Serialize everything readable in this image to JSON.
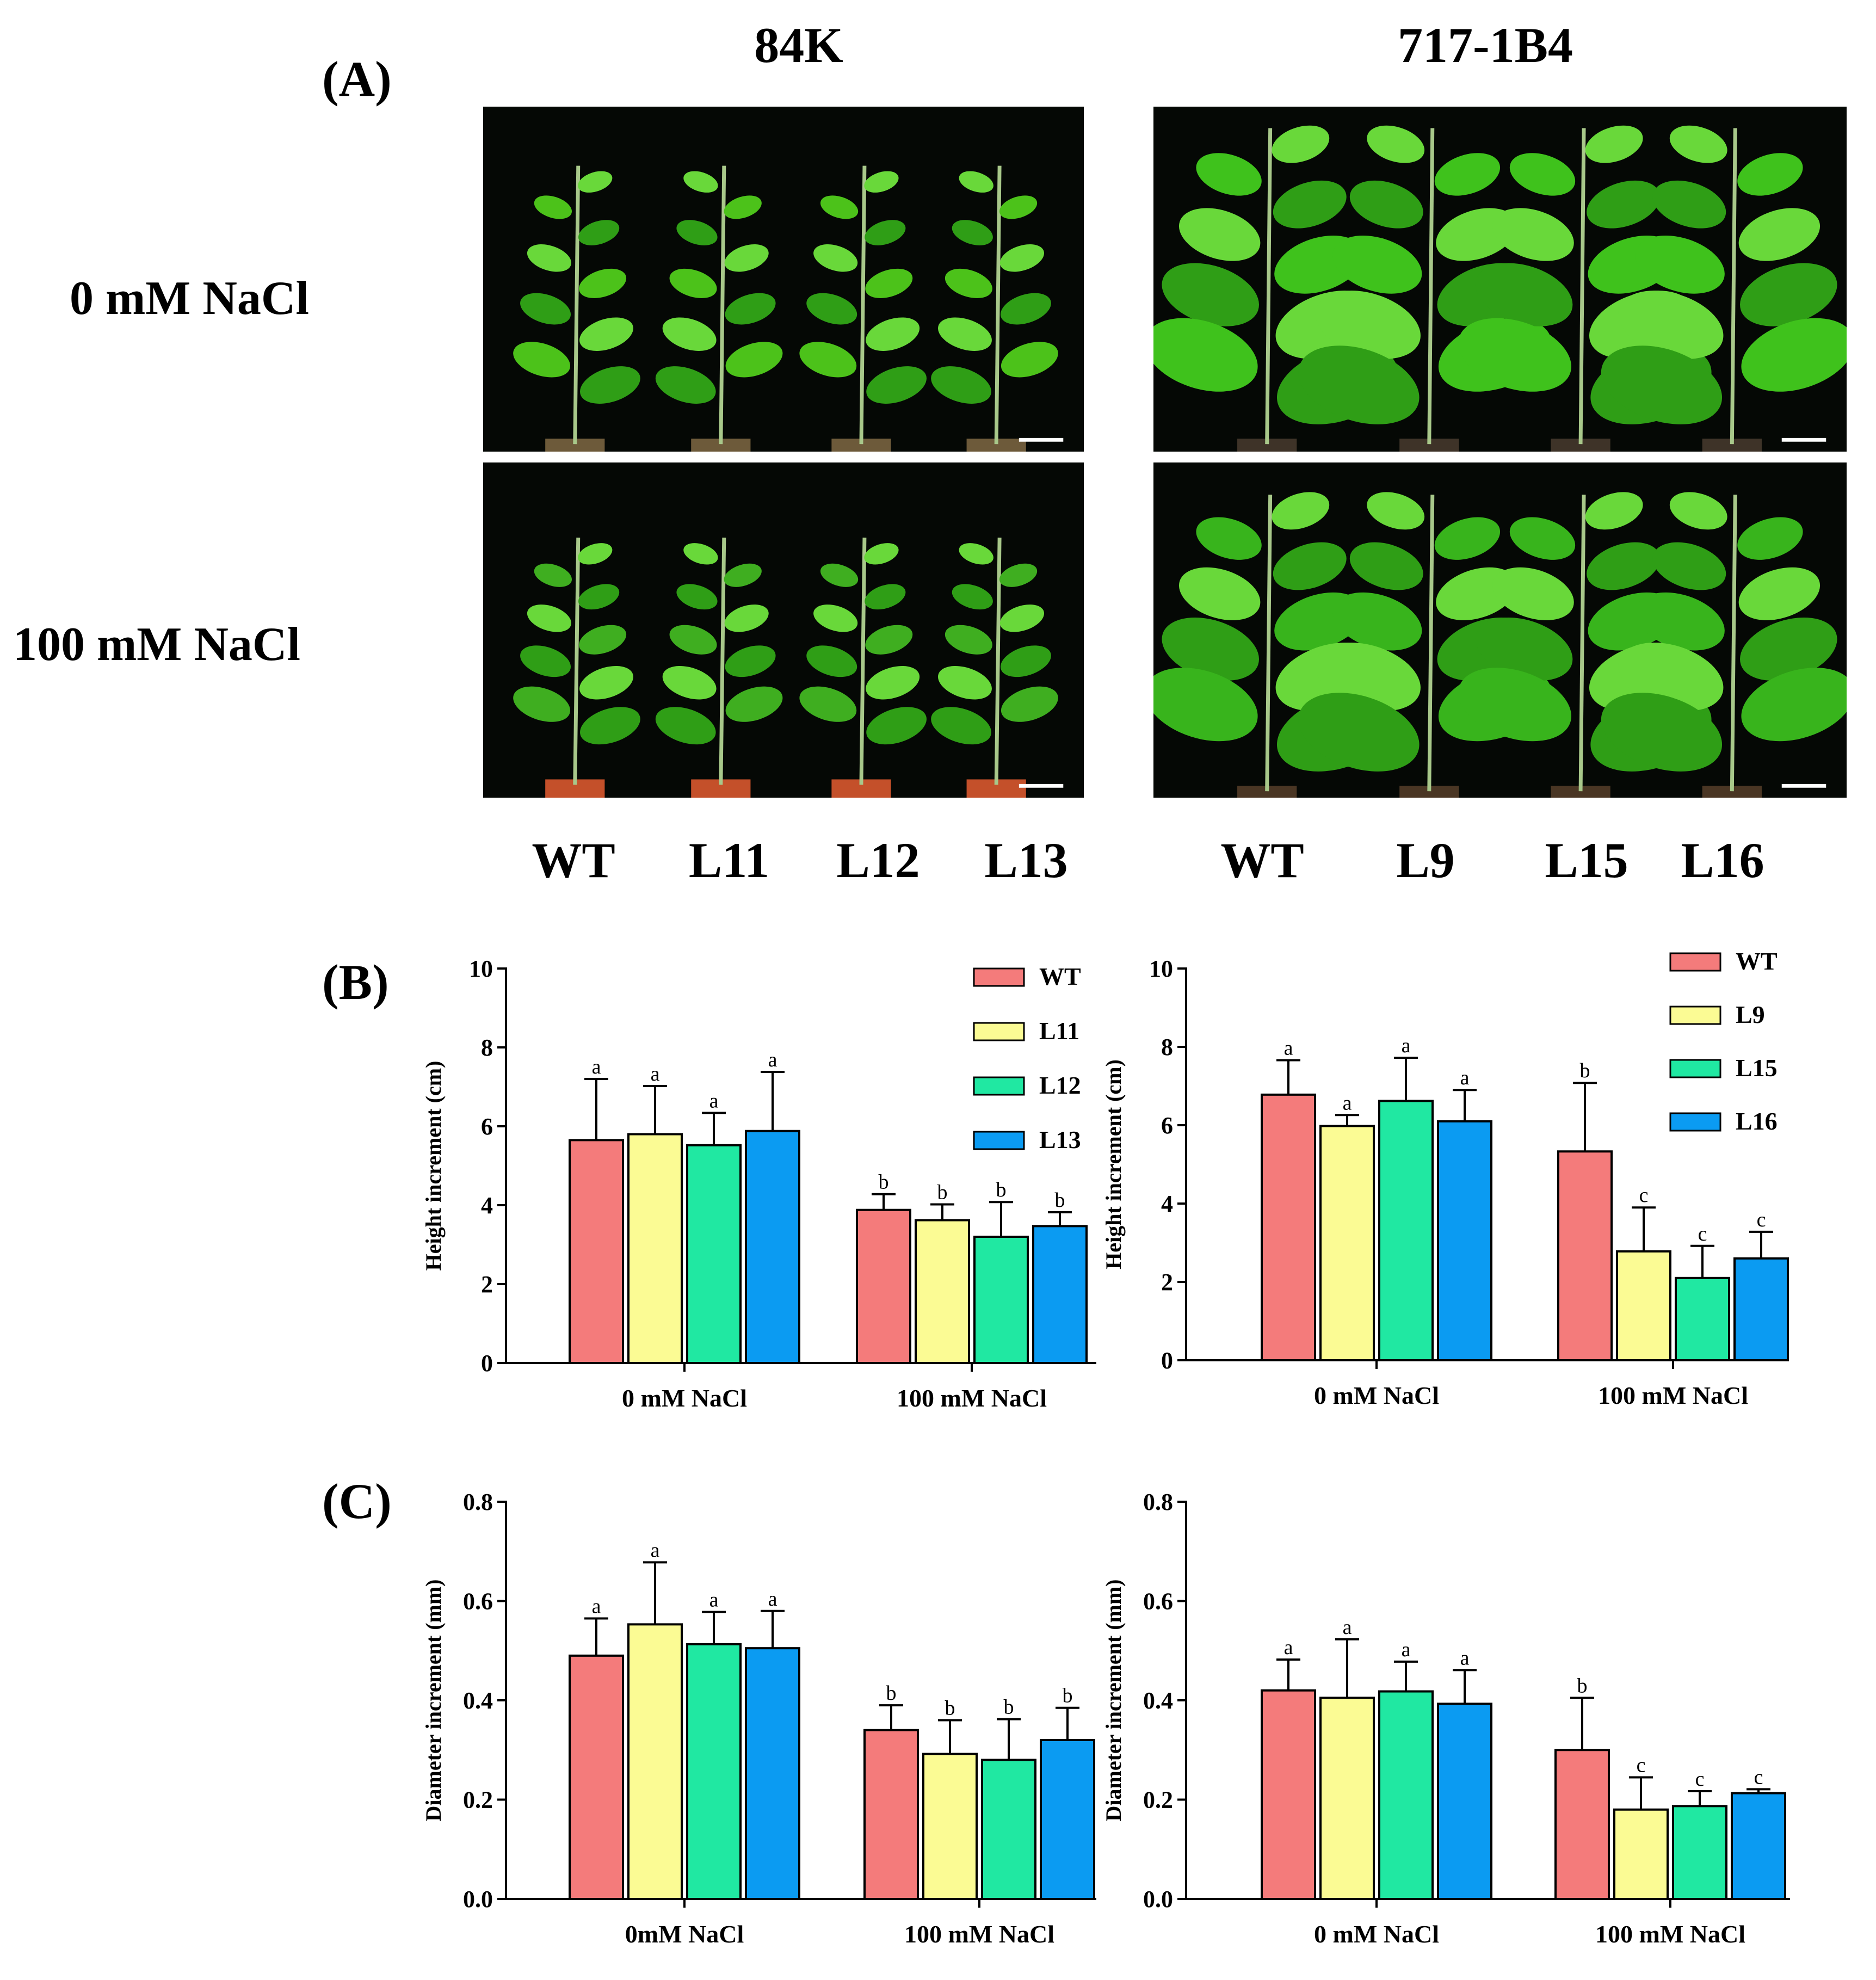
{
  "panel_A": {
    "label": "(A)",
    "col_titles": [
      "84K",
      "717-1B4"
    ],
    "row_labels": [
      "0 mM NaCl",
      "100 mM NaCl"
    ],
    "line_labels_84K": [
      "WT",
      "L11",
      "L12",
      "L13"
    ],
    "line_labels_717": [
      "WT",
      "L9",
      "L15",
      "L16"
    ],
    "photos": [
      {
        "name": "84k-control-photo",
        "content": "plant photograph"
      },
      {
        "name": "717-control-photo",
        "content": "plant photograph"
      },
      {
        "name": "84k-salt-photo",
        "content": "plant photograph"
      },
      {
        "name": "717-salt-photo",
        "content": "plant photograph"
      }
    ]
  },
  "panel_B_label": "(B)",
  "panel_C_label": "(C)",
  "colors": {
    "WT": "#f47b7b",
    "L_a": "#fbfb94",
    "L_b": "#20e8a2",
    "L_c": "#0b9bf2"
  },
  "chart_data": [
    {
      "id": "B-left",
      "type": "bar",
      "ylabel": "Height increment (cm)",
      "ylim": [
        0,
        10
      ],
      "yticks": [
        "0",
        "2",
        "4",
        "6",
        "8",
        "10"
      ],
      "ytick_values": [
        0,
        2,
        4,
        6,
        8,
        10
      ],
      "categories": [
        "0 mM NaCl",
        "100 mM NaCl"
      ],
      "legend_position": "top-right",
      "series": [
        {
          "name": "WT",
          "values": [
            5.65,
            3.88
          ],
          "errors": [
            1.55,
            0.4
          ],
          "letters": [
            "a",
            "b"
          ]
        },
        {
          "name": "L11",
          "values": [
            5.8,
            3.62
          ],
          "errors": [
            1.22,
            0.4
          ],
          "letters": [
            "a",
            "b"
          ]
        },
        {
          "name": "L12",
          "values": [
            5.52,
            3.2
          ],
          "errors": [
            0.82,
            0.88
          ],
          "letters": [
            "a",
            "b"
          ]
        },
        {
          "name": "L13",
          "values": [
            5.88,
            3.47
          ],
          "errors": [
            1.5,
            0.35
          ],
          "letters": [
            "a",
            "b"
          ]
        }
      ]
    },
    {
      "id": "B-right",
      "type": "bar",
      "ylabel": "Height increment (cm)",
      "ylim": [
        0,
        10
      ],
      "yticks": [
        "0",
        "2",
        "4",
        "6",
        "8",
        "10"
      ],
      "ytick_values": [
        0,
        2,
        4,
        6,
        8,
        10
      ],
      "categories": [
        "0 mM NaCl",
        "100 mM NaCl"
      ],
      "legend_position": "top-right",
      "series": [
        {
          "name": "WT",
          "values": [
            6.78,
            5.33
          ],
          "errors": [
            0.88,
            1.75
          ],
          "letters": [
            "a",
            "b"
          ]
        },
        {
          "name": "L9",
          "values": [
            5.98,
            2.78
          ],
          "errors": [
            0.28,
            1.12
          ],
          "letters": [
            "a",
            "c"
          ]
        },
        {
          "name": "L15",
          "values": [
            6.62,
            2.1
          ],
          "errors": [
            1.1,
            0.82
          ],
          "letters": [
            "a",
            "c"
          ]
        },
        {
          "name": "L16",
          "values": [
            6.1,
            2.6
          ],
          "errors": [
            0.8,
            0.68
          ],
          "letters": [
            "a",
            "c"
          ]
        }
      ]
    },
    {
      "id": "C-left",
      "type": "bar",
      "ylabel": "Diameter increment (mm)",
      "ylim": [
        0,
        0.8
      ],
      "yticks": [
        "0.0",
        "0.2",
        "0.4",
        "0.6",
        "0.8"
      ],
      "ytick_values": [
        0,
        0.2,
        0.4,
        0.6,
        0.8
      ],
      "categories": [
        "0mM NaCl",
        "100 mM NaCl"
      ],
      "series": [
        {
          "name": "WT",
          "values": [
            0.49,
            0.34
          ],
          "errors": [
            0.075,
            0.05
          ],
          "letters": [
            "a",
            "b"
          ]
        },
        {
          "name": "L11",
          "values": [
            0.553,
            0.292
          ],
          "errors": [
            0.125,
            0.068
          ],
          "letters": [
            "a",
            "b"
          ]
        },
        {
          "name": "L12",
          "values": [
            0.513,
            0.28
          ],
          "errors": [
            0.065,
            0.082
          ],
          "letters": [
            "a",
            "b"
          ]
        },
        {
          "name": "L13",
          "values": [
            0.505,
            0.32
          ],
          "errors": [
            0.075,
            0.065
          ],
          "letters": [
            "a",
            "b"
          ]
        }
      ]
    },
    {
      "id": "C-right",
      "type": "bar",
      "ylabel": "Diameter increment (mm)",
      "ylim": [
        0,
        0.8
      ],
      "yticks": [
        "0.0",
        "0.2",
        "0.4",
        "0.6",
        "0.8"
      ],
      "ytick_values": [
        0,
        0.2,
        0.4,
        0.6,
        0.8
      ],
      "categories": [
        "0 mM NaCl",
        "100 mM NaCl"
      ],
      "series": [
        {
          "name": "WT",
          "values": [
            0.42,
            0.3
          ],
          "errors": [
            0.062,
            0.105
          ],
          "letters": [
            "a",
            "b"
          ]
        },
        {
          "name": "L9",
          "values": [
            0.405,
            0.18
          ],
          "errors": [
            0.118,
            0.065
          ],
          "letters": [
            "a",
            "c"
          ]
        },
        {
          "name": "L15",
          "values": [
            0.418,
            0.187
          ],
          "errors": [
            0.06,
            0.03
          ],
          "letters": [
            "a",
            "c"
          ]
        },
        {
          "name": "L16",
          "values": [
            0.393,
            0.213
          ],
          "errors": [
            0.068,
            0.008
          ],
          "letters": [
            "a",
            "c"
          ]
        }
      ]
    }
  ]
}
